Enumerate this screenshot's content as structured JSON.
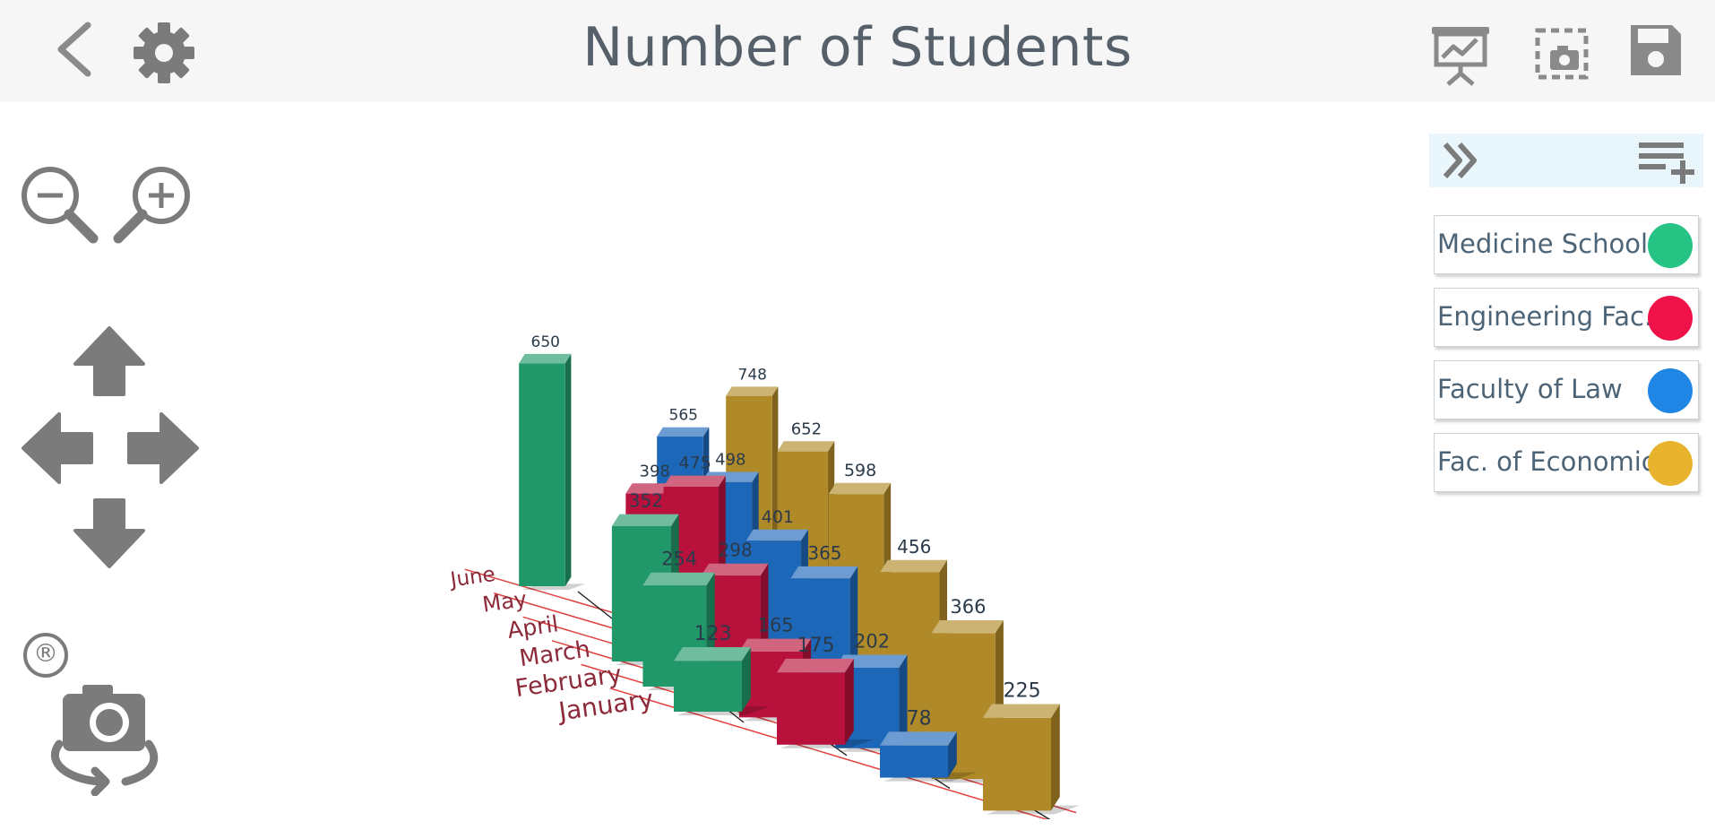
{
  "header": {
    "title": "Number of Students",
    "icons": [
      "back-icon",
      "settings-gear-icon",
      "presentation-chart-icon",
      "screenshot-capture-icon",
      "save-floppy-icon"
    ]
  },
  "left_controls": {
    "icons": [
      "zoom-out-icon",
      "zoom-in-icon",
      "arrow-up-icon",
      "arrow-left-icon",
      "arrow-right-icon",
      "arrow-down-icon",
      "registered-mark-icon",
      "camera-rotate-icon"
    ],
    "registered_mark": "®"
  },
  "legend_panel": {
    "icons": [
      "collapse-double-chevron-icon",
      "add-list-icon"
    ],
    "items": [
      {
        "label": "Medicine School",
        "color": "#27c384"
      },
      {
        "label": "Engineering Fac.",
        "color": "#ee1248"
      },
      {
        "label": "Faculty of Law",
        "color": "#1f86e6"
      },
      {
        "label": "Fac. of Economic",
        "color": "#e8b32c"
      }
    ]
  },
  "chart_data": {
    "type": "bar",
    "subtype": "3d-grouped",
    "title": "Number of Students",
    "categories": [
      "January",
      "February",
      "March",
      "April",
      "May",
      "June"
    ],
    "series": [
      {
        "name": "Medicine School",
        "color": "#21986a",
        "values": [
          123,
          254,
          352,
          null,
          null,
          650
        ]
      },
      {
        "name": "Engineering Fac.",
        "color": "#b8123c",
        "values": [
          175,
          165,
          298,
          475,
          398,
          null
        ]
      },
      {
        "name": "Faculty of Law",
        "color": "#1d67b8",
        "values": [
          78,
          202,
          365,
          401,
          498,
          565
        ]
      },
      {
        "name": "Fac. of Economic",
        "color": "#b08a28",
        "values": [
          225,
          366,
          456,
          598,
          652,
          748
        ]
      }
    ],
    "grid": true,
    "legend": "right"
  }
}
